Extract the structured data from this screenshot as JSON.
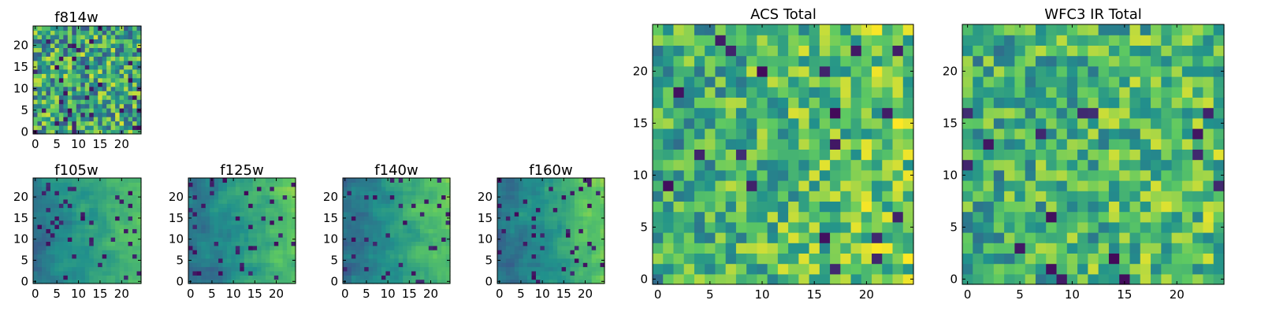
{
  "figure": {
    "colormap": "viridis",
    "colors": [
      "#440154",
      "#3b528b",
      "#21918c",
      "#5ec962",
      "#fde725"
    ]
  },
  "chart_data": [
    {
      "type": "heatmap",
      "title": "f814w",
      "size": 25,
      "xticks": [
        0,
        5,
        10,
        15,
        20
      ],
      "yticks": [
        0,
        5,
        10,
        15,
        20
      ],
      "vrange": [
        0,
        1
      ],
      "pattern": "random",
      "seed": 814,
      "bias": 0.6,
      "noise": 0.34,
      "xgrad": 0.0,
      "ygrad": 0.0,
      "dark": 0.05
    },
    {
      "type": "heatmap",
      "title": "f105w",
      "size": 25,
      "xticks": [
        0,
        5,
        10,
        15,
        20
      ],
      "yticks": [
        0,
        5,
        10,
        15,
        20
      ],
      "vrange": [
        0,
        1
      ],
      "pattern": "smooth-gradient",
      "seed": 105,
      "bias": 0.55,
      "noise": 0.2,
      "xgrad": 0.3,
      "ygrad": 0.05,
      "dark": 0.06
    },
    {
      "type": "heatmap",
      "title": "f125w",
      "size": 25,
      "xticks": [
        0,
        5,
        10,
        15,
        20
      ],
      "yticks": [
        0,
        5,
        10,
        15,
        20
      ],
      "vrange": [
        0,
        1
      ],
      "pattern": "smooth-gradient",
      "seed": 125,
      "bias": 0.55,
      "noise": 0.2,
      "xgrad": 0.35,
      "ygrad": 0.05,
      "dark": 0.06
    },
    {
      "type": "heatmap",
      "title": "f140w",
      "size": 25,
      "xticks": [
        0,
        5,
        10,
        15,
        20
      ],
      "yticks": [
        0,
        5,
        10,
        15,
        20
      ],
      "vrange": [
        0,
        1
      ],
      "pattern": "smooth-gradient",
      "seed": 140,
      "bias": 0.55,
      "noise": 0.2,
      "xgrad": 0.35,
      "ygrad": 0.05,
      "dark": 0.05
    },
    {
      "type": "heatmap",
      "title": "f160w",
      "size": 25,
      "xticks": [
        0,
        5,
        10,
        15,
        20
      ],
      "yticks": [
        0,
        5,
        10,
        15,
        20
      ],
      "vrange": [
        0,
        1
      ],
      "pattern": "smooth-gradient",
      "seed": 160,
      "bias": 0.55,
      "noise": 0.2,
      "xgrad": 0.4,
      "ygrad": 0.05,
      "dark": 0.06
    },
    {
      "type": "heatmap",
      "title": "ACS Total",
      "size": 25,
      "xticks": [
        0,
        5,
        10,
        15,
        20
      ],
      "yticks": [
        0,
        5,
        10,
        15,
        20
      ],
      "vrange": [
        0,
        1
      ],
      "pattern": "random",
      "seed": 2001,
      "bias": 0.68,
      "noise": 0.26,
      "xgrad": 0.15,
      "ygrad": 0.0,
      "dark": 0.025
    },
    {
      "type": "heatmap",
      "title": "WFC3 IR Total",
      "size": 25,
      "xticks": [
        0,
        5,
        10,
        15,
        20
      ],
      "yticks": [
        0,
        5,
        10,
        15,
        20
      ],
      "vrange": [
        0,
        1
      ],
      "pattern": "random",
      "seed": 3001,
      "bias": 0.66,
      "noise": 0.26,
      "xgrad": 0.1,
      "ygrad": 0.0,
      "dark": 0.03
    }
  ]
}
